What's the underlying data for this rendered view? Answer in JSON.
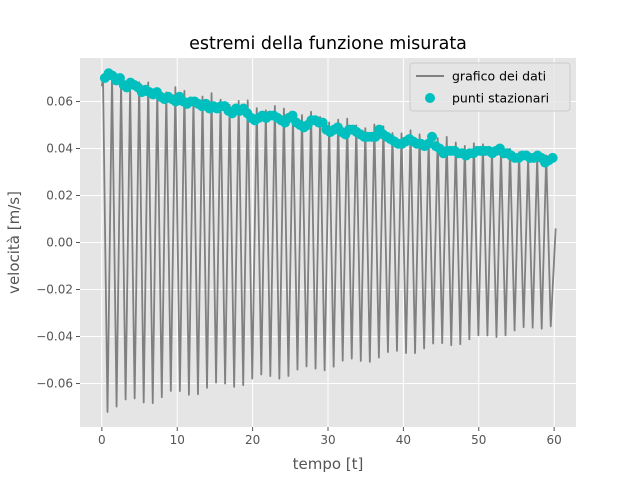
{
  "chart_data": {
    "type": "line",
    "title": "estremi della funzione misurata",
    "xlabel": "tempo [t]",
    "ylabel": "velocità [m/s]",
    "xlim": [
      -2.9,
      62.9
    ],
    "ylim": [
      -0.0785,
      0.0785
    ],
    "x_ticks": [
      0,
      10,
      20,
      30,
      40,
      50,
      60
    ],
    "x_tick_labels": [
      "0",
      "10",
      "20",
      "30",
      "40",
      "50",
      "60"
    ],
    "y_ticks": [
      -0.06,
      -0.04,
      -0.02,
      0.0,
      0.02,
      0.04,
      0.06
    ],
    "y_tick_labels": [
      "−0.06",
      "−0.04",
      "−0.02",
      "0.00",
      "0.02",
      "0.04",
      "0.06"
    ],
    "grid": true,
    "legend_placement": "top-right",
    "series": [
      {
        "name": "grafico dei dati",
        "kind": "line",
        "color": "#808080",
        "period": 1.2,
        "t_end": 60.2,
        "t_start": 0.0,
        "max_start": 0.07,
        "max_end": 0.036,
        "min_start": -0.07,
        "min_end": -0.035,
        "end_value": 0.006
      },
      {
        "name": "punti stazionari",
        "kind": "scatter",
        "color": "#00BFBF",
        "points": [
          [
            0.4,
            0.07
          ],
          [
            0.9,
            0.072
          ],
          [
            1.4,
            0.071
          ],
          [
            1.9,
            0.069
          ],
          [
            2.4,
            0.07
          ],
          [
            2.9,
            0.067
          ],
          [
            3.3,
            0.066
          ],
          [
            3.8,
            0.068
          ],
          [
            4.3,
            0.067
          ],
          [
            4.8,
            0.066
          ],
          [
            5.3,
            0.064
          ],
          [
            5.8,
            0.065
          ],
          [
            6.3,
            0.064
          ],
          [
            6.8,
            0.063
          ],
          [
            7.3,
            0.064
          ],
          [
            7.8,
            0.062
          ],
          [
            8.3,
            0.061
          ],
          [
            8.8,
            0.062
          ],
          [
            9.3,
            0.061
          ],
          [
            9.8,
            0.06
          ],
          [
            10.3,
            0.062
          ],
          [
            10.8,
            0.06
          ],
          [
            11.3,
            0.059
          ],
          [
            11.8,
            0.06
          ],
          [
            12.3,
            0.06
          ],
          [
            12.8,
            0.059
          ],
          [
            13.3,
            0.058
          ],
          [
            13.8,
            0.059
          ],
          [
            14.3,
            0.057
          ],
          [
            14.8,
            0.058
          ],
          [
            15.3,
            0.057
          ],
          [
            15.8,
            0.058
          ],
          [
            16.3,
            0.058
          ],
          [
            16.8,
            0.056
          ],
          [
            17.3,
            0.055
          ],
          [
            17.8,
            0.057
          ],
          [
            18.3,
            0.056
          ],
          [
            18.8,
            0.057
          ],
          [
            19.3,
            0.055
          ],
          [
            19.8,
            0.053
          ],
          [
            20.3,
            0.052
          ],
          [
            20.8,
            0.053
          ],
          [
            21.3,
            0.054
          ],
          [
            21.8,
            0.053
          ],
          [
            22.3,
            0.054
          ],
          [
            22.8,
            0.054
          ],
          [
            23.3,
            0.053
          ],
          [
            23.8,
            0.052
          ],
          [
            24.3,
            0.051
          ],
          [
            24.8,
            0.053
          ],
          [
            25.3,
            0.054
          ],
          [
            25.8,
            0.051
          ],
          [
            26.3,
            0.05
          ],
          [
            26.8,
            0.049
          ],
          [
            27.3,
            0.05
          ],
          [
            27.8,
            0.052
          ],
          [
            28.3,
            0.052
          ],
          [
            28.8,
            0.051
          ],
          [
            29.3,
            0.051
          ],
          [
            29.8,
            0.048
          ],
          [
            30.3,
            0.047
          ],
          [
            30.8,
            0.048
          ],
          [
            31.3,
            0.049
          ],
          [
            31.8,
            0.047
          ],
          [
            32.3,
            0.046
          ],
          [
            32.8,
            0.048
          ],
          [
            33.3,
            0.048
          ],
          [
            33.8,
            0.047
          ],
          [
            34.3,
            0.046
          ],
          [
            34.8,
            0.045
          ],
          [
            35.3,
            0.045
          ],
          [
            35.8,
            0.045
          ],
          [
            36.3,
            0.045
          ],
          [
            36.8,
            0.048
          ],
          [
            37.3,
            0.046
          ],
          [
            37.8,
            0.045
          ],
          [
            38.3,
            0.044
          ],
          [
            38.8,
            0.043
          ],
          [
            39.3,
            0.042
          ],
          [
            39.8,
            0.042
          ],
          [
            40.3,
            0.043
          ],
          [
            40.8,
            0.044
          ],
          [
            41.3,
            0.043
          ],
          [
            41.8,
            0.042
          ],
          [
            42.3,
            0.042
          ],
          [
            42.8,
            0.041
          ],
          [
            43.3,
            0.042
          ],
          [
            43.8,
            0.045
          ],
          [
            44.3,
            0.041
          ],
          [
            44.8,
            0.04
          ],
          [
            45.3,
            0.038
          ],
          [
            45.8,
            0.039
          ],
          [
            46.3,
            0.039
          ],
          [
            46.8,
            0.039
          ],
          [
            47.3,
            0.038
          ],
          [
            47.8,
            0.038
          ],
          [
            48.3,
            0.037
          ],
          [
            48.8,
            0.038
          ],
          [
            49.3,
            0.038
          ],
          [
            49.8,
            0.039
          ],
          [
            50.3,
            0.039
          ],
          [
            50.8,
            0.039
          ],
          [
            51.3,
            0.039
          ],
          [
            51.8,
            0.038
          ],
          [
            52.3,
            0.039
          ],
          [
            52.8,
            0.04
          ],
          [
            53.3,
            0.038
          ],
          [
            53.8,
            0.038
          ],
          [
            54.3,
            0.037
          ],
          [
            54.8,
            0.036
          ],
          [
            55.3,
            0.036
          ],
          [
            55.8,
            0.037
          ],
          [
            56.3,
            0.037
          ],
          [
            56.8,
            0.036
          ],
          [
            57.3,
            0.036
          ],
          [
            57.8,
            0.037
          ],
          [
            58.3,
            0.036
          ],
          [
            58.8,
            0.034
          ],
          [
            59.3,
            0.035
          ],
          [
            59.8,
            0.036
          ]
        ]
      }
    ]
  }
}
